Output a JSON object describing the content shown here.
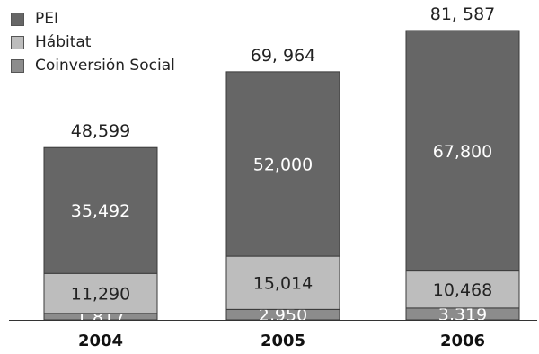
{
  "chart_data": {
    "type": "bar",
    "stacked": true,
    "categories": [
      "2004",
      "2005",
      "2006"
    ],
    "series": [
      {
        "name": "Coinversión Social",
        "values": [
          1817,
          2950,
          3319
        ],
        "labels": [
          "1,817",
          "2,950",
          "3,319"
        ],
        "color": "#8c8c8c"
      },
      {
        "name": "Hábitat",
        "values": [
          11290,
          15014,
          10468
        ],
        "labels": [
          "11,290",
          "15,014",
          "10,468"
        ],
        "color": "#bdbdbd"
      },
      {
        "name": "PEI",
        "values": [
          35492,
          52000,
          67800
        ],
        "labels": [
          "35,492",
          "52,000",
          "67,800"
        ],
        "color": "#666666"
      }
    ],
    "totals": [
      48599,
      69964,
      81587
    ],
    "total_labels": [
      "48,599",
      "69, 964",
      "81, 587"
    ],
    "legend": [
      "PEI",
      "Hábitat",
      "Coinversión Social"
    ],
    "legend_position": "top-left",
    "grid": false
  }
}
